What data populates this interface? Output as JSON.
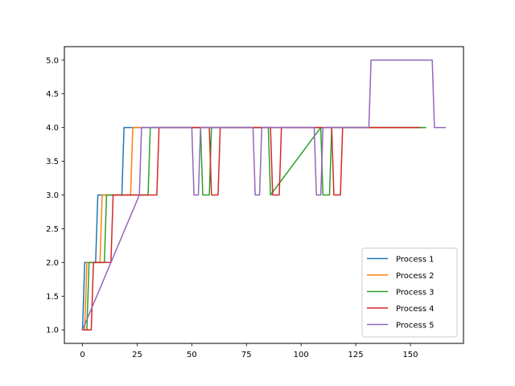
{
  "chart_data": {
    "type": "line",
    "title": "",
    "xlabel": "",
    "ylabel": "",
    "xlim": [
      -8.3,
      174.3
    ],
    "ylim": [
      0.8,
      5.2
    ],
    "xticks": [
      0,
      25,
      50,
      75,
      100,
      125,
      150
    ],
    "xtick_labels": [
      "0",
      "25",
      "50",
      "75",
      "100",
      "125",
      "150"
    ],
    "yticks": [
      1.0,
      1.5,
      2.0,
      2.5,
      3.0,
      3.5,
      4.0,
      4.5,
      5.0
    ],
    "ytick_labels": [
      "1.0",
      "1.5",
      "2.0",
      "2.5",
      "3.0",
      "3.5",
      "4.0",
      "4.5",
      "5.0"
    ],
    "grid": false,
    "legend_position": "lower right",
    "series": [
      {
        "name": "Process 1",
        "color": "#1f77b4",
        "x": [
          0,
          1,
          6,
          7,
          18,
          19,
          155
        ],
        "y": [
          1,
          2,
          2,
          3,
          3,
          4,
          4
        ]
      },
      {
        "name": "Process 2",
        "color": "#ff7f0e",
        "x": [
          0,
          1,
          2,
          3,
          8,
          9,
          22,
          23,
          156
        ],
        "y": [
          1,
          1,
          2,
          2,
          2,
          3,
          3,
          4,
          4
        ]
      },
      {
        "name": "Process 3",
        "color": "#2ca02c",
        "x": [
          0,
          2,
          3,
          10,
          11,
          30,
          31,
          54,
          55,
          58,
          59,
          85,
          86,
          109,
          110,
          113,
          114,
          157
        ],
        "y": [
          1,
          1,
          2,
          2,
          3,
          3,
          4,
          4,
          3,
          3,
          4,
          4,
          3,
          4,
          3,
          3,
          4,
          4
        ]
      },
      {
        "name": "Process 4",
        "color": "#d62728",
        "x": [
          0,
          4,
          5,
          13,
          14,
          34,
          35,
          58,
          59,
          62,
          63,
          86,
          87,
          90,
          91,
          114,
          115,
          118,
          119,
          154
        ],
        "y": [
          1,
          1,
          2,
          2,
          3,
          3,
          4,
          4,
          3,
          3,
          4,
          4,
          3,
          3,
          4,
          4,
          3,
          3,
          4,
          4
        ]
      },
      {
        "name": "Process 5",
        "color": "#9467bd",
        "x": [
          0,
          26,
          27,
          50,
          51,
          53,
          54,
          78,
          79,
          81,
          82,
          106,
          107,
          109,
          110,
          131,
          132,
          160,
          161,
          166
        ],
        "y": [
          1,
          3,
          4,
          4,
          3,
          3,
          4,
          4,
          3,
          3,
          4,
          4,
          3,
          3,
          4,
          4,
          5,
          5,
          4,
          4
        ]
      }
    ]
  }
}
